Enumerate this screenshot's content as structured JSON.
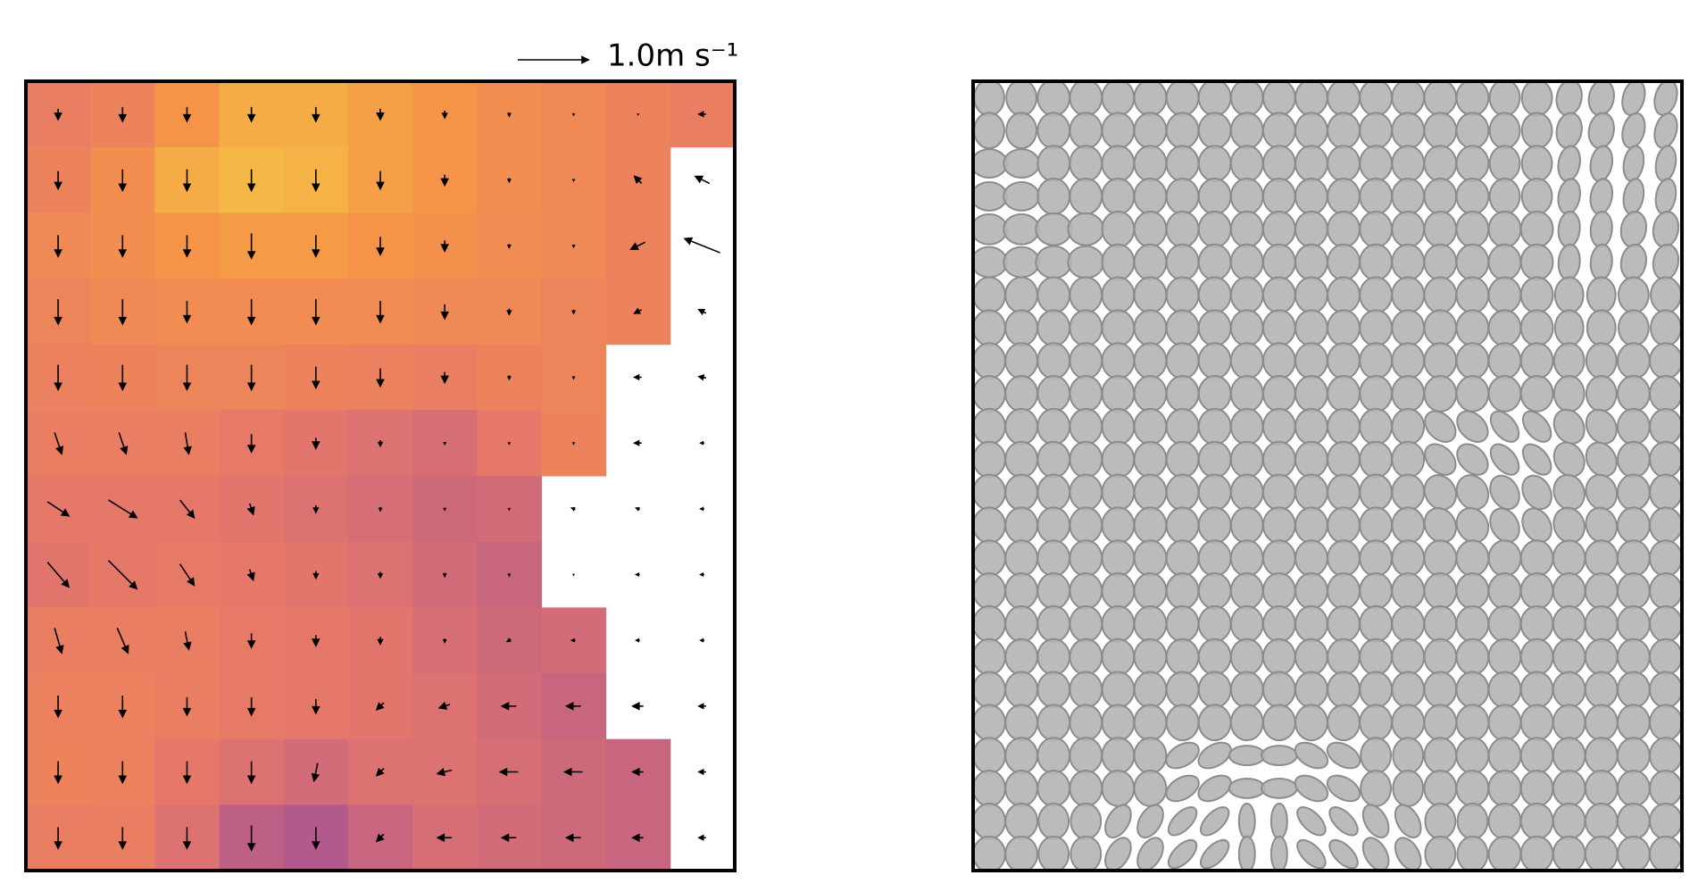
{
  "chart_data": [
    {
      "type": "quiver",
      "key_label": "1.0m s⁻¹",
      "key_value": 1.0,
      "clim": [
        0,
        1
      ],
      "colormap": [
        "#5a3f9e",
        "#b25a8c",
        "#e6786a",
        "#f59448",
        "#f5cf45"
      ],
      "values": [
        [
          0.55,
          0.6,
          0.75,
          0.85,
          0.85,
          0.8,
          0.75,
          0.7,
          0.65,
          0.6,
          0.55
        ],
        [
          0.6,
          0.7,
          0.85,
          0.9,
          0.88,
          0.8,
          0.75,
          0.7,
          0.65,
          0.6,
          null
        ],
        [
          0.65,
          0.7,
          0.75,
          0.78,
          0.78,
          0.75,
          0.72,
          0.68,
          0.65,
          0.6,
          null
        ],
        [
          0.62,
          0.65,
          0.68,
          0.68,
          0.68,
          0.67,
          0.65,
          0.65,
          0.62,
          0.6,
          null
        ],
        [
          0.58,
          0.6,
          0.62,
          0.62,
          0.6,
          0.58,
          0.55,
          0.6,
          0.62,
          null,
          null
        ],
        [
          0.55,
          0.55,
          0.55,
          0.52,
          0.48,
          0.45,
          0.42,
          0.5,
          0.6,
          null,
          null
        ],
        [
          0.5,
          0.5,
          0.5,
          0.48,
          0.45,
          0.42,
          0.38,
          0.4,
          null,
          null,
          null
        ],
        [
          0.48,
          0.5,
          0.52,
          0.5,
          0.48,
          0.45,
          0.4,
          0.35,
          null,
          null,
          null
        ],
        [
          0.55,
          0.55,
          0.55,
          0.52,
          0.5,
          0.48,
          0.42,
          0.38,
          0.4,
          null,
          null
        ],
        [
          0.58,
          0.58,
          0.55,
          0.52,
          0.5,
          0.48,
          0.45,
          0.4,
          0.35,
          null,
          null
        ],
        [
          0.6,
          0.58,
          0.5,
          0.45,
          0.4,
          0.45,
          0.45,
          0.42,
          0.38,
          0.35,
          null
        ],
        [
          0.55,
          0.55,
          0.45,
          0.3,
          0.25,
          0.35,
          0.42,
          0.4,
          0.38,
          0.35,
          null
        ]
      ],
      "u": [
        [
          0,
          0,
          0,
          0,
          0,
          0,
          0,
          0,
          0,
          0,
          -0.1
        ],
        [
          0,
          0,
          0,
          0,
          0,
          0,
          0,
          0,
          0,
          -0.1,
          -0.2
        ],
        [
          0,
          0,
          0,
          0,
          0,
          0,
          0,
          0,
          0,
          -0.2,
          -0.5
        ],
        [
          0,
          0,
          0,
          0,
          0,
          0,
          0,
          0,
          0,
          -0.1,
          -0.1
        ],
        [
          0,
          0,
          0,
          0,
          0,
          0,
          0,
          0,
          0,
          -0.1,
          -0.1
        ],
        [
          0.1,
          0.1,
          0.05,
          0,
          0,
          0,
          0,
          0,
          0,
          -0.1,
          -0.05
        ],
        [
          0.3,
          0.4,
          0.2,
          0.05,
          0,
          0,
          0,
          0,
          -0.05,
          -0.05,
          -0.05
        ],
        [
          0.3,
          0.4,
          0.2,
          0.05,
          0,
          0,
          0,
          0,
          0,
          -0.05,
          -0.05
        ],
        [
          0.1,
          0.15,
          0.05,
          0,
          0,
          0,
          0,
          -0.05,
          -0.05,
          -0.05,
          -0.05
        ],
        [
          0,
          0,
          0,
          0,
          0,
          -0.1,
          -0.15,
          -0.2,
          -0.2,
          -0.15,
          -0.1
        ],
        [
          0,
          0,
          0,
          0,
          -0.05,
          -0.1,
          -0.2,
          -0.25,
          -0.25,
          -0.15,
          -0.1
        ],
        [
          0,
          0,
          0,
          0,
          0,
          -0.1,
          -0.2,
          -0.2,
          -0.2,
          -0.15,
          -0.1
        ]
      ],
      "v": [
        [
          -0.15,
          -0.2,
          -0.2,
          -0.2,
          -0.2,
          -0.15,
          -0.1,
          -0.05,
          -0.02,
          0,
          0
        ],
        [
          -0.25,
          -0.3,
          -0.3,
          -0.3,
          -0.3,
          -0.25,
          -0.15,
          -0.05,
          -0.02,
          0.1,
          0.1
        ],
        [
          -0.3,
          -0.3,
          -0.3,
          -0.35,
          -0.3,
          -0.25,
          -0.15,
          -0.05,
          -0.03,
          -0.1,
          0.2
        ],
        [
          -0.35,
          -0.35,
          -0.3,
          -0.35,
          -0.35,
          -0.3,
          -0.2,
          -0.08,
          -0.05,
          -0.05,
          0.05
        ],
        [
          -0.35,
          -0.35,
          -0.35,
          -0.35,
          -0.3,
          -0.25,
          -0.15,
          -0.05,
          -0.03,
          0,
          0.02
        ],
        [
          -0.3,
          -0.3,
          -0.3,
          -0.25,
          -0.15,
          -0.08,
          -0.03,
          -0.02,
          -0.02,
          0,
          0
        ],
        [
          -0.2,
          -0.25,
          -0.25,
          -0.15,
          -0.1,
          -0.05,
          -0.03,
          -0.02,
          0.02,
          0.02,
          0
        ],
        [
          -0.35,
          -0.4,
          -0.3,
          -0.15,
          -0.1,
          -0.08,
          -0.05,
          -0.03,
          0,
          0,
          0
        ],
        [
          -0.35,
          -0.35,
          -0.25,
          -0.2,
          -0.15,
          -0.1,
          -0.05,
          -0.03,
          0,
          0,
          0
        ],
        [
          -0.3,
          -0.3,
          -0.25,
          -0.25,
          -0.2,
          -0.1,
          -0.05,
          0,
          0,
          0,
          0
        ],
        [
          -0.3,
          -0.3,
          -0.3,
          -0.3,
          -0.25,
          -0.1,
          -0.05,
          0,
          0,
          0,
          0
        ],
        [
          -0.3,
          -0.3,
          -0.3,
          -0.35,
          -0.3,
          -0.1,
          0,
          0,
          0,
          0,
          0
        ]
      ]
    },
    {
      "type": "ellipse",
      "color": "#b4b4b4",
      "aspect": [
        [
          0.85,
          0.9,
          0.9,
          0.9,
          0.9,
          0.9,
          0.9,
          0.9,
          0.85,
          0.7,
          0.6
        ],
        [
          0.8,
          0.9,
          0.9,
          0.9,
          0.9,
          0.9,
          0.9,
          0.9,
          0.85,
          0.6,
          0.55
        ],
        [
          0.85,
          0.9,
          0.9,
          0.9,
          0.9,
          0.9,
          0.9,
          0.9,
          0.9,
          0.6,
          0.7
        ],
        [
          0.9,
          0.9,
          0.9,
          0.9,
          0.9,
          0.9,
          0.9,
          0.9,
          0.9,
          0.8,
          0.85
        ],
        [
          0.9,
          0.9,
          0.9,
          0.9,
          0.9,
          0.9,
          0.9,
          0.9,
          0.9,
          0.85,
          0.9
        ],
        [
          0.9,
          0.9,
          0.9,
          0.9,
          0.9,
          0.9,
          0.9,
          0.7,
          0.6,
          0.8,
          0.9
        ],
        [
          0.9,
          0.9,
          0.9,
          0.9,
          0.9,
          0.9,
          0.9,
          0.85,
          0.75,
          0.85,
          0.9
        ],
        [
          0.9,
          0.9,
          0.9,
          0.9,
          0.9,
          0.9,
          0.9,
          0.9,
          0.9,
          0.9,
          0.9
        ],
        [
          0.9,
          0.9,
          0.9,
          0.9,
          0.9,
          0.9,
          0.9,
          0.9,
          0.9,
          0.9,
          0.9
        ],
        [
          0.9,
          0.9,
          0.9,
          0.9,
          0.9,
          0.9,
          0.9,
          0.9,
          0.9,
          0.9,
          0.9
        ],
        [
          0.9,
          0.9,
          0.9,
          0.6,
          0.55,
          0.6,
          0.85,
          0.9,
          0.9,
          0.9,
          0.9
        ],
        [
          0.9,
          0.85,
          0.6,
          0.5,
          0.45,
          0.5,
          0.6,
          0.85,
          0.9,
          0.9,
          0.9
        ]
      ],
      "angle": [
        [
          90,
          90,
          90,
          90,
          90,
          90,
          90,
          90,
          90,
          100,
          105
        ],
        [
          0,
          90,
          90,
          90,
          90,
          90,
          90,
          90,
          90,
          100,
          100
        ],
        [
          0,
          0,
          90,
          90,
          90,
          90,
          90,
          90,
          90,
          95,
          100
        ],
        [
          90,
          90,
          90,
          90,
          90,
          90,
          90,
          90,
          90,
          90,
          90
        ],
        [
          90,
          90,
          90,
          90,
          90,
          90,
          90,
          90,
          90,
          90,
          90
        ],
        [
          90,
          90,
          90,
          90,
          90,
          90,
          90,
          45,
          50,
          60,
          90
        ],
        [
          90,
          90,
          90,
          90,
          90,
          90,
          90,
          60,
          60,
          70,
          90
        ],
        [
          90,
          90,
          90,
          90,
          90,
          90,
          90,
          90,
          90,
          90,
          90
        ],
        [
          90,
          90,
          90,
          90,
          90,
          90,
          90,
          90,
          90,
          90,
          90
        ],
        [
          90,
          90,
          90,
          90,
          90,
          90,
          90,
          90,
          90,
          90,
          90
        ],
        [
          90,
          90,
          90,
          150,
          0,
          30,
          90,
          90,
          90,
          90,
          90
        ],
        [
          90,
          90,
          120,
          135,
          90,
          45,
          60,
          90,
          90,
          90,
          90
        ]
      ]
    }
  ]
}
